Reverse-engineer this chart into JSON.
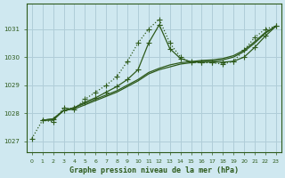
{
  "background_color": "#cfe8f0",
  "grid_color": "#b0cdd8",
  "line_color": "#2d5a1b",
  "title": "Graphe pression niveau de la mer (hPa)",
  "ylim": [
    1026.6,
    1031.9
  ],
  "xlim": [
    -0.5,
    23.5
  ],
  "yticks": [
    1027,
    1028,
    1029,
    1030,
    1031
  ],
  "xticks": [
    0,
    1,
    2,
    3,
    4,
    5,
    6,
    7,
    8,
    9,
    10,
    11,
    12,
    13,
    14,
    15,
    16,
    17,
    18,
    19,
    20,
    21,
    22,
    23
  ],
  "lines": [
    {
      "x": [
        0,
        1,
        2,
        3,
        4,
        5,
        6,
        7,
        8,
        9,
        10,
        11,
        12,
        13,
        14,
        15,
        16,
        17,
        18,
        19,
        20,
        21,
        22,
        23
      ],
      "y": [
        1027.1,
        1027.75,
        1027.7,
        1028.2,
        1028.15,
        1028.5,
        1028.75,
        1029.0,
        1029.3,
        1029.85,
        1030.5,
        1031.0,
        1031.35,
        1030.5,
        1030.0,
        1029.8,
        1029.8,
        1029.8,
        1029.75,
        1029.85,
        1030.25,
        1030.7,
        1031.0,
        1031.1
      ],
      "linestyle": "dotted",
      "marker": "+",
      "markersize": 4
    },
    {
      "x": [
        1,
        2,
        3,
        4,
        5,
        6,
        7,
        8,
        9,
        10,
        11,
        12,
        13,
        14,
        15,
        16,
        17,
        18,
        19,
        20,
        21,
        22,
        23
      ],
      "y": [
        1027.75,
        1027.75,
        1028.1,
        1028.15,
        1028.3,
        1028.45,
        1028.6,
        1028.75,
        1028.95,
        1029.15,
        1029.4,
        1029.55,
        1029.65,
        1029.75,
        1029.8,
        1029.85,
        1029.85,
        1029.9,
        1030.0,
        1030.2,
        1030.5,
        1030.85,
        1031.1
      ],
      "linestyle": "solid",
      "marker": null,
      "markersize": 0
    },
    {
      "x": [
        1,
        2,
        3,
        4,
        5,
        6,
        7,
        8,
        9,
        10,
        11,
        12,
        13,
        14,
        15,
        16,
        17,
        18,
        19,
        20,
        21,
        22,
        23
      ],
      "y": [
        1027.75,
        1027.8,
        1028.1,
        1028.2,
        1028.35,
        1028.5,
        1028.65,
        1028.8,
        1029.0,
        1029.2,
        1029.45,
        1029.6,
        1029.72,
        1029.8,
        1029.84,
        1029.88,
        1029.9,
        1029.95,
        1030.05,
        1030.25,
        1030.55,
        1030.88,
        1031.1
      ],
      "linestyle": "solid",
      "marker": null,
      "markersize": 0
    },
    {
      "x": [
        1,
        2,
        3,
        4,
        5,
        6,
        7,
        8,
        9,
        10,
        11,
        12,
        13,
        14,
        15,
        16,
        17,
        18,
        19,
        20,
        21,
        22,
        23
      ],
      "y": [
        1027.75,
        1027.8,
        1028.1,
        1028.2,
        1028.4,
        1028.55,
        1028.75,
        1028.95,
        1029.2,
        1029.55,
        1030.5,
        1031.15,
        1030.3,
        1029.95,
        1029.83,
        1029.82,
        1029.82,
        1029.82,
        1029.85,
        1030.0,
        1030.35,
        1030.75,
        1031.1
      ],
      "linestyle": "solid",
      "marker": "+",
      "markersize": 4
    }
  ]
}
